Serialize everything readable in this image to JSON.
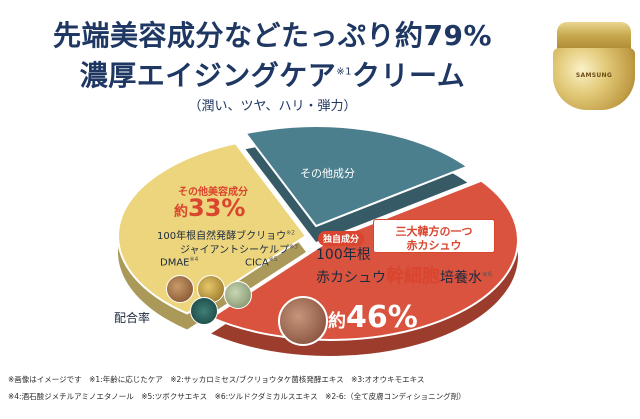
{
  "headline": {
    "line1": "先端美容成分などたっぷり約79%",
    "line2_main": "濃厚エイジングケア",
    "line2_mark": "※1",
    "line2_end": "クリーム",
    "subline": "（潤い、ツヤ、ハリ・弾力）"
  },
  "product": {
    "label": "SAMSUNG"
  },
  "chart_data": {
    "type": "pie",
    "title": "配合率",
    "slices": [
      {
        "name": "その他成分",
        "value": 21,
        "color": "#4b7f8e"
      },
      {
        "name": "赤カシュウ幹細胞培養水",
        "value": 46,
        "color": "#d9533f"
      },
      {
        "name": "その他美容成分",
        "value": 33,
        "color": "#ecd57c"
      }
    ]
  },
  "labels": {
    "other": "その他成分",
    "a_name": "その他美容成分",
    "a_prefix": "約",
    "a_pct": "33%",
    "items": [
      {
        "text": "100年根自然発酵ブクリョウ",
        "mark": "※2"
      },
      {
        "text": "ジャイアントシーケルプ",
        "mark": "※3"
      },
      {
        "text": "DMAE",
        "mark": "※4"
      },
      {
        "text": "CICA",
        "mark": "※5"
      }
    ],
    "badge": "独自成分",
    "b_line1": "100年根",
    "b_line2_pre": "赤カシュウ",
    "b_line2_em": "幹細胞",
    "b_line2_post": "培養水",
    "b_line2_mark": "※6",
    "callout_l1": "三大韓方の一つ",
    "callout_l2": "赤カシュウ",
    "b_prefix": "約",
    "b_pct": "46%"
  },
  "footnotes": {
    "line1": "※画像はイメージです　※1:年齢に応じたケア　※2:サッカロミセス/ブクリョウタケ菌核発酵エキス　※3:オオウキモエキス",
    "line2": "※4:酒石酸ジメチルアミノエタノール　※5:ツボクサエキス　※6:ツルドクダミカルスエキス　※2-6:（全て皮膚コンディショニング剤）"
  }
}
